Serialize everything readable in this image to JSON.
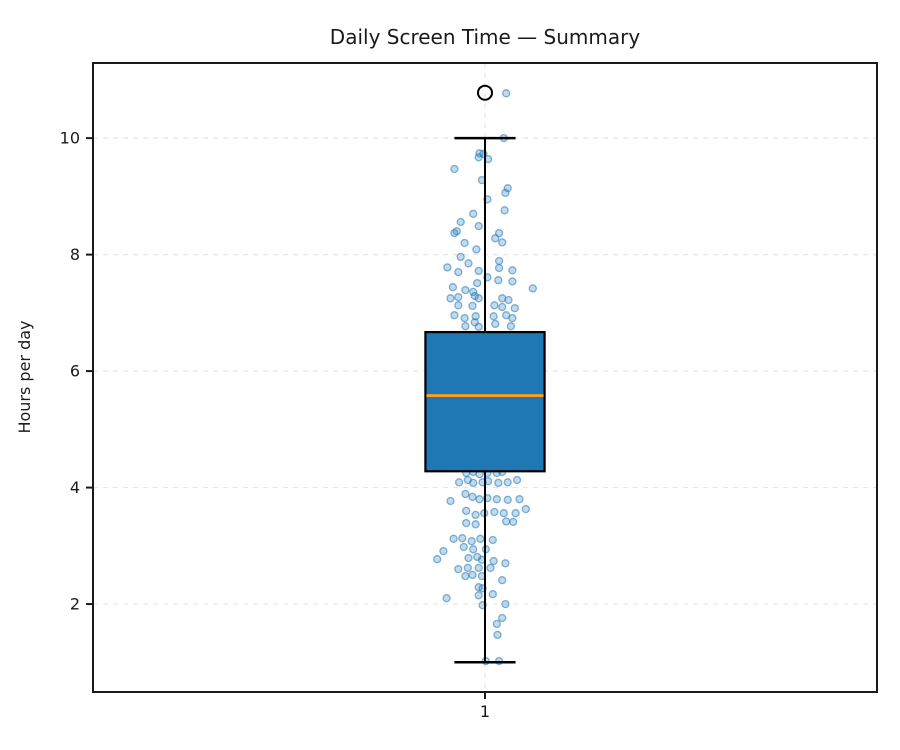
{
  "figure": {
    "title": "Daily Screen Time — Summary"
  },
  "chart_data": {
    "type": "box",
    "title": "Daily Screen Time — Summary",
    "subtitle": "",
    "xlabel": "",
    "ylabel": "Hours per day",
    "categories": [
      "1"
    ],
    "yticks": [
      2,
      4,
      6,
      8,
      10
    ],
    "ylim": [
      0.49,
      11.29
    ],
    "xlim": [
      0.5,
      1.5
    ],
    "grid": {
      "visible": true,
      "style": "dashed",
      "axes": "both",
      "color": "#e6e6e6"
    },
    "legend": null,
    "colors": {
      "box_face": "#1f77b4",
      "box_edge": "#000000",
      "median": "#ff9d20",
      "whisker": "#000000",
      "point_base": "#1f77b4",
      "point_fill_alpha": 0.27,
      "point_edge_alpha": 0.55,
      "spine": "#1a1a1a",
      "outlier_edge": "#000000"
    },
    "box": {
      "position": 1,
      "whisker_low": 1.0,
      "q1": 4.28,
      "median": 5.58,
      "q3": 6.67,
      "whisker_high": 10.0,
      "outliers": [
        10.78
      ],
      "box_half_width": 0.076,
      "cap_half_width": 0.039
    },
    "points": [
      [
        1.027,
        10.77
      ],
      [
        1.024,
        10.0
      ],
      [
        0.993,
        9.74
      ],
      [
        0.998,
        9.73
      ],
      [
        0.992,
        9.67
      ],
      [
        1.004,
        9.64
      ],
      [
        0.961,
        9.47
      ],
      [
        0.996,
        9.28
      ],
      [
        1.029,
        9.14
      ],
      [
        1.026,
        9.06
      ],
      [
        1.003,
        8.95
      ],
      [
        1.025,
        8.76
      ],
      [
        0.985,
        8.7
      ],
      [
        0.969,
        8.56
      ],
      [
        0.992,
        8.49
      ],
      [
        0.964,
        8.4
      ],
      [
        0.961,
        8.37
      ],
      [
        1.018,
        8.37
      ],
      [
        1.013,
        8.28
      ],
      [
        0.974,
        8.2
      ],
      [
        1.022,
        8.21
      ],
      [
        0.989,
        8.09
      ],
      [
        0.969,
        7.96
      ],
      [
        1.018,
        7.89
      ],
      [
        0.979,
        7.85
      ],
      [
        0.952,
        7.78
      ],
      [
        0.966,
        7.7
      ],
      [
        0.992,
        7.72
      ],
      [
        1.018,
        7.77
      ],
      [
        1.035,
        7.73
      ],
      [
        1.003,
        7.61
      ],
      [
        1.017,
        7.56
      ],
      [
        0.99,
        7.51
      ],
      [
        1.035,
        7.54
      ],
      [
        1.061,
        7.42
      ],
      [
        0.959,
        7.44
      ],
      [
        0.975,
        7.39
      ],
      [
        0.985,
        7.36
      ],
      [
        0.956,
        7.25
      ],
      [
        0.966,
        7.27
      ],
      [
        0.987,
        7.29
      ],
      [
        0.992,
        7.25
      ],
      [
        1.022,
        7.25
      ],
      [
        1.03,
        7.22
      ],
      [
        0.966,
        7.13
      ],
      [
        0.984,
        7.12
      ],
      [
        1.012,
        7.13
      ],
      [
        1.022,
        7.1
      ],
      [
        1.038,
        7.08
      ],
      [
        0.961,
        6.96
      ],
      [
        0.974,
        6.91
      ],
      [
        0.988,
        6.94
      ],
      [
        1.011,
        6.94
      ],
      [
        1.027,
        6.96
      ],
      [
        1.035,
        6.91
      ],
      [
        0.987,
        6.84
      ],
      [
        0.992,
        6.76
      ],
      [
        1.013,
        6.81
      ],
      [
        1.033,
        6.77
      ],
      [
        0.975,
        6.77
      ],
      [
        0.976,
        4.25
      ],
      [
        0.985,
        4.27
      ],
      [
        0.993,
        4.23
      ],
      [
        1.003,
        4.25
      ],
      [
        1.015,
        4.25
      ],
      [
        1.022,
        4.27
      ],
      [
        0.967,
        4.09
      ],
      [
        0.978,
        4.13
      ],
      [
        0.985,
        4.08
      ],
      [
        0.997,
        4.09
      ],
      [
        1.004,
        4.11
      ],
      [
        1.017,
        4.08
      ],
      [
        1.029,
        4.09
      ],
      [
        1.041,
        4.13
      ],
      [
        0.956,
        3.77
      ],
      [
        0.975,
        3.89
      ],
      [
        0.984,
        3.84
      ],
      [
        0.993,
        3.8
      ],
      [
        1.003,
        3.82
      ],
      [
        1.015,
        3.8
      ],
      [
        1.029,
        3.79
      ],
      [
        1.044,
        3.8
      ],
      [
        1.052,
        3.63
      ],
      [
        0.976,
        3.6
      ],
      [
        0.988,
        3.53
      ],
      [
        0.999,
        3.56
      ],
      [
        1.012,
        3.58
      ],
      [
        1.024,
        3.56
      ],
      [
        1.039,
        3.56
      ],
      [
        0.976,
        3.39
      ],
      [
        0.988,
        3.37
      ],
      [
        1.036,
        3.41
      ],
      [
        1.027,
        3.42
      ],
      [
        0.96,
        3.12
      ],
      [
        0.971,
        3.13
      ],
      [
        0.983,
        3.08
      ],
      [
        0.994,
        3.12
      ],
      [
        1.01,
        3.1
      ],
      [
        0.973,
        2.98
      ],
      [
        0.985,
        2.94
      ],
      [
        0.947,
        2.91
      ],
      [
        1.001,
        2.94
      ],
      [
        0.939,
        2.77
      ],
      [
        0.979,
        2.79
      ],
      [
        0.99,
        2.81
      ],
      [
        0.996,
        2.76
      ],
      [
        1.011,
        2.74
      ],
      [
        1.026,
        2.7
      ],
      [
        0.966,
        2.6
      ],
      [
        0.978,
        2.62
      ],
      [
        0.992,
        2.62
      ],
      [
        1.007,
        2.62
      ],
      [
        0.975,
        2.48
      ],
      [
        0.984,
        2.5
      ],
      [
        0.996,
        2.48
      ],
      [
        1.022,
        2.41
      ],
      [
        0.992,
        2.29
      ],
      [
        0.997,
        2.27
      ],
      [
        1.01,
        2.17
      ],
      [
        0.951,
        2.1
      ],
      [
        0.992,
        2.15
      ],
      [
        0.997,
        1.98
      ],
      [
        1.026,
        2.0
      ],
      [
        1.022,
        1.76
      ],
      [
        1.015,
        1.66
      ],
      [
        1.016,
        1.47
      ],
      [
        1.001,
        1.02
      ],
      [
        1.018,
        1.02
      ]
    ],
    "layout_hints": {
      "legend_position": "none",
      "plot_background": "#ffffff",
      "note": "single vertical box plot with jittered strip points at x=1"
    }
  }
}
